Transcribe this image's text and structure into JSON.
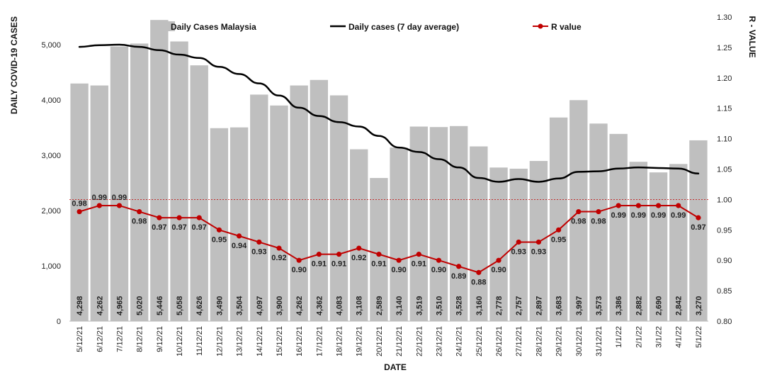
{
  "chart_data": {
    "type": "bar",
    "title": "",
    "xlabel": "DATE",
    "ylabel": "DAILY COVID-19 CASES",
    "y2label": "R - VALUE",
    "ylim": [
      0,
      5500
    ],
    "y2lim": [
      0.8,
      1.3
    ],
    "yticks": [
      "0",
      "1,000",
      "2,000",
      "3,000",
      "4,000",
      "5,000"
    ],
    "y2ticks": [
      "0.80",
      "0.85",
      "0.90",
      "0.95",
      "1.00",
      "1.05",
      "1.10",
      "1.15",
      "1.20",
      "1.25",
      "1.30"
    ],
    "reference_line_r": 1.0,
    "legend_position": "top",
    "categories": [
      "5/12/21",
      "6/12/21",
      "7/12/21",
      "8/12/21",
      "9/12/21",
      "10/12/21",
      "11/12/21",
      "12/12/21",
      "13/12/21",
      "14/12/21",
      "15/12/21",
      "16/12/21",
      "17/12/21",
      "18/12/21",
      "19/12/21",
      "20/12/21",
      "21/12/21",
      "22/12/21",
      "23/12/21",
      "24/12/21",
      "25/12/21",
      "26/12/21",
      "27/12/21",
      "28/12/21",
      "29/12/21",
      "30/12/21",
      "31/12/21",
      "1/1/22",
      "2/1/22",
      "3/1/22",
      "4/1/22",
      "5/1/22"
    ],
    "series": [
      {
        "name": "Daily Cases Malaysia",
        "type": "bar",
        "color": "#bfbfbf",
        "values": [
          4298,
          4262,
          4965,
          5020,
          5446,
          5058,
          4626,
          3490,
          3504,
          4097,
          3900,
          4262,
          4362,
          4083,
          3108,
          2589,
          3140,
          3519,
          3510,
          3528,
          3160,
          2778,
          2757,
          2897,
          3683,
          3997,
          3573,
          3386,
          2882,
          2690,
          2842,
          3270
        ],
        "value_labels": [
          "4,298",
          "4,262",
          "4,965",
          "5,020",
          "5,446",
          "5,058",
          "4,626",
          "3,490",
          "3,504",
          "4,097",
          "3,900",
          "4,262",
          "4,362",
          "4,083",
          "3,108",
          "2,589",
          "3,140",
          "3,519",
          "3,510",
          "3,528",
          "3,160",
          "2,778",
          "2,757",
          "2,897",
          "3,683",
          "3,997",
          "3,573",
          "3,386",
          "2,882",
          "2,690",
          "2,842",
          "3,270"
        ]
      },
      {
        "name": "Daily cases (7 day average)",
        "type": "line",
        "color": "#000000",
        "values": [
          4960,
          4990,
          5000,
          4960,
          4900,
          4820,
          4760,
          4600,
          4470,
          4300,
          4080,
          3860,
          3710,
          3600,
          3520,
          3350,
          3140,
          3060,
          2930,
          2780,
          2590,
          2520,
          2570,
          2520,
          2580,
          2700,
          2710,
          2760,
          2780,
          2770,
          2760,
          2670
        ]
      },
      {
        "name": "R value",
        "type": "line",
        "axis": "right",
        "color": "#c00000",
        "values": [
          0.98,
          0.99,
          0.99,
          0.98,
          0.97,
          0.97,
          0.97,
          0.95,
          0.94,
          0.93,
          0.92,
          0.9,
          0.91,
          0.91,
          0.92,
          0.91,
          0.9,
          0.91,
          0.9,
          0.89,
          0.88,
          0.9,
          0.93,
          0.93,
          0.95,
          0.98,
          0.98,
          0.99,
          0.99,
          0.99,
          0.99,
          0.97
        ],
        "value_labels": [
          "0.98",
          "0.99",
          "0.99",
          "0.98",
          "0.97",
          "0.97",
          "0.97",
          "0.95",
          "0.94",
          "0.93",
          "0.92",
          "0.90",
          "0.91",
          "0.91",
          "0.92",
          "0.91",
          "0.90",
          "0.91",
          "0.90",
          "0.89",
          "0.88",
          "0.90",
          "0.93",
          "0.93",
          "0.95",
          "0.98",
          "0.98",
          "0.99",
          "0.99",
          "0.99",
          "0.99",
          "0.97"
        ]
      }
    ]
  }
}
